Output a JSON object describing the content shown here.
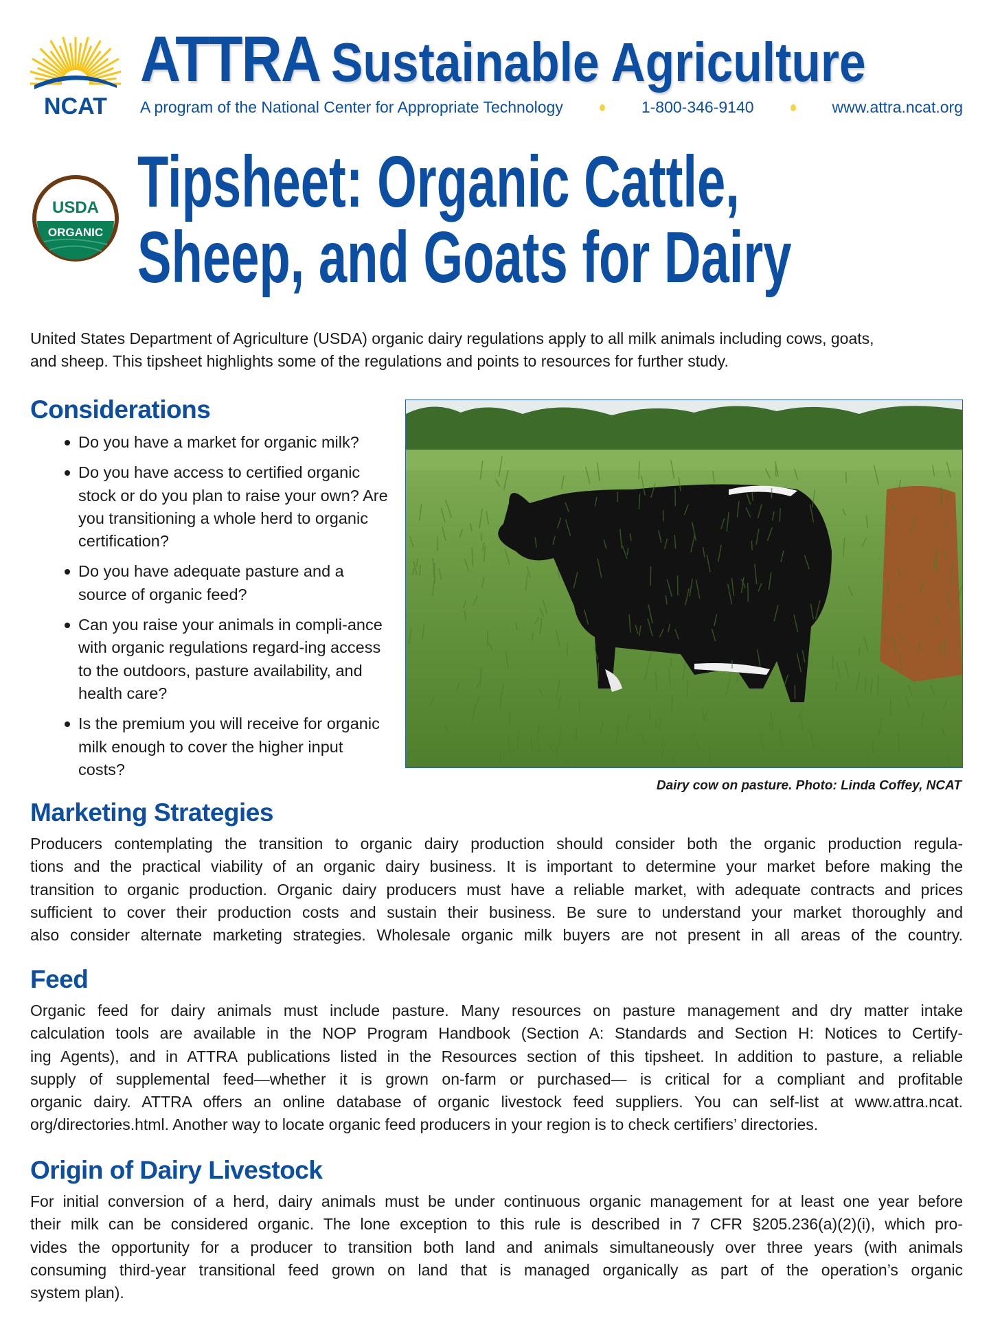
{
  "header": {
    "logo_text": "NCAT",
    "brand": "ATTRA",
    "brand_title": "Sustainable Agriculture",
    "tagline": "A program of the National Center for Appropriate Technology",
    "phone": "1-800-346-9140",
    "website": "www.attra.ncat.org",
    "colors": {
      "brand_blue": "#0b4ea2",
      "accent_yellow": "#f5d442"
    }
  },
  "seal": {
    "top": "USDA",
    "bottom": "ORGANIC"
  },
  "title": {
    "line1": "Tipsheet: Organic Cattle,",
    "line2": "Sheep, and Goats for Dairy"
  },
  "intro": [
    "United States Department of Agriculture (USDA) organic dairy regulations apply to all milk animals including cows, goats,",
    "and sheep. This tipsheet highlights some of the regulations and points to resources for further study."
  ],
  "considerations": {
    "heading": "Considerations",
    "items": [
      "Do you have a market for organic milk?",
      "Do you have access to certified organic stock or do you plan to raise your own? Are you transitioning a whole herd to organic certification?",
      "Do you have adequate pasture and a source of organic feed?",
      "Can you raise your animals in compli-ance with organic regulations regard-ing access to the outdoors, pasture availability, and health care?",
      "Is the premium you will receive for organic milk enough to cover the higher input costs?"
    ]
  },
  "photo": {
    "caption": "Dairy cow on pasture. Photo: Linda Coffey, NCAT"
  },
  "marketing": {
    "heading": "Marketing Strategies",
    "lines": [
      "Producers contemplating the transition to organic dairy production should consider both the organic production regula-",
      "tions and the practical viability of an organic dairy business. It is important to determine your market before making the",
      "transition to organic production. Organic dairy producers must have a reliable market, with adequate contracts and prices",
      "sufficient to cover their production costs and sustain their business. Be sure to understand your market thoroughly and",
      "also consider alternate marketing strategies. Wholesale organic milk buyers are not present in all areas of the country."
    ]
  },
  "feed": {
    "heading": "Feed",
    "lines": [
      "Organic feed for dairy animals must include pasture. Many resources on pasture management and dry matter intake",
      "calculation tools are available in the NOP Program Handbook (Section A: Standards and Section H: Notices to Certify-",
      "ing Agents), and in ATTRA publications listed in the Resources section of this tipsheet. In addition to pasture, a reliable",
      "supply of supplemental feed—whether it is grown on-farm or purchased— is critical for a compliant and profitable",
      "organic dairy. ATTRA offers an online database of organic livestock feed suppliers. You can self-list at www.attra.ncat.",
      "org/directories.html. Another way to locate organic feed producers in your region is to check certifiers’ directories."
    ]
  },
  "origin": {
    "heading": "Origin of Dairy Livestock",
    "lines": [
      "For initial conversion of a herd, dairy animals must be under continuous organic management for at least one year before",
      "their milk can be considered organic. The lone exception to this rule is described in 7 CFR §205.236(a)(2)(i), which pro-",
      "vides the opportunity for a producer to transition both land and animals simultaneously over three years (with animals",
      "consuming third-year transitional feed grown on land that is managed organically as part of the operation’s organic",
      "system plan)."
    ]
  }
}
